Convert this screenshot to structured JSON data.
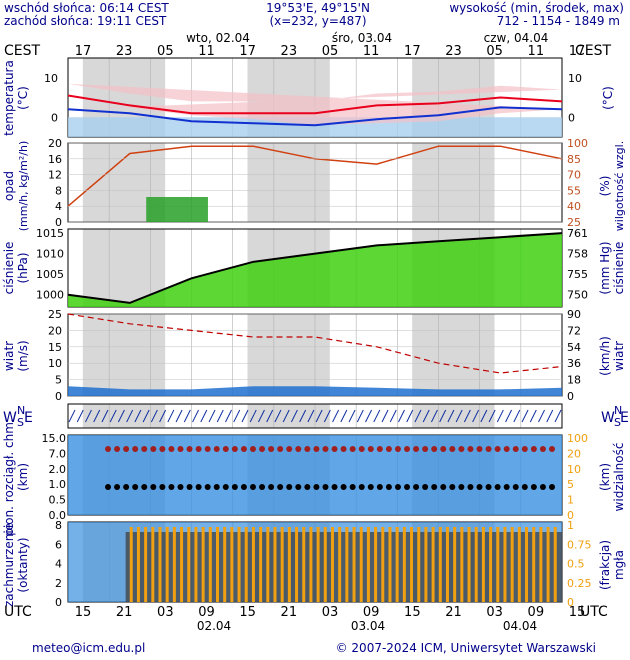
{
  "header": {
    "sunrise": "wschód słońca: 06:14 CEST",
    "sunset": "zachód słońca: 19:11 CEST",
    "coords": "19°53'E, 49°15'N",
    "grid": "(x=232, y=487)",
    "elev_title": "wysokość (min, środek, max)",
    "elev_values": "712 - 1154 - 1849 m"
  },
  "top_axis": {
    "tz_label": "CEST",
    "hours": [
      "17",
      "23",
      "05",
      "11",
      "17",
      "23",
      "05",
      "11",
      "17",
      "23",
      "05",
      "11",
      "17"
    ],
    "days": [
      "wto, 02.04",
      "śro, 03.04",
      "czw, 04.04"
    ]
  },
  "bottom_axis": {
    "tz_label": "UTC",
    "hours": [
      "15",
      "21",
      "03",
      "09",
      "15",
      "21",
      "03",
      "09",
      "15",
      "21",
      "03",
      "09",
      "15"
    ],
    "dates": [
      "02.04",
      "03.04",
      "04.04"
    ]
  },
  "footer": {
    "email": "meteo@icm.edu.pl",
    "copyright": "© 2007-2024 ICM, Uniwersytet Warszawski"
  },
  "panels": {
    "temperature": {
      "left_label": "temperatura",
      "left_unit": "(°C)",
      "right_label": "(°C)",
      "ticks": [
        "10",
        "0"
      ]
    },
    "precip": {
      "left_label": "opad",
      "left_unit": "(mm/h, kg/m²/h)",
      "right_label": "wilgotność wzgl.",
      "right_unit": "(%)",
      "left_ticks": [
        "20",
        "16",
        "12",
        "8",
        "4",
        "0"
      ],
      "right_ticks": [
        "100",
        "85",
        "70",
        "55",
        "40",
        "25"
      ]
    },
    "pressure": {
      "left_label": "ciśnienie",
      "left_unit": "(hPa)",
      "right_label": "ciśnienie",
      "right_unit": "(mm Hg)",
      "left_ticks": [
        "1015",
        "1010",
        "1005",
        "1000"
      ],
      "right_ticks": [
        "761",
        "758",
        "755",
        "750"
      ]
    },
    "wind": {
      "left_label": "wiatr",
      "left_unit": "(m/s)",
      "right_label": "wiatr",
      "right_unit": "(km/h)",
      "left_ticks": [
        "25",
        "20",
        "15",
        "10",
        "5",
        "0"
      ],
      "right_ticks": [
        "90",
        "72",
        "54",
        "36",
        "18",
        "0"
      ]
    },
    "direction": {
      "compass_n": "N",
      "compass_s": "S",
      "compass_w": "W",
      "compass_e": "E"
    },
    "clouds": {
      "left_label": "pion. rozciągł. chm.",
      "left_unit": "(km)",
      "right_label": "widzialność",
      "right_unit": "(km)",
      "left_ticks": [
        "15.0",
        "7.0",
        "2.0",
        "1.0",
        "0.5",
        "0.0"
      ],
      "right_ticks": [
        "100",
        "20",
        "10",
        "5",
        "1",
        "0"
      ]
    },
    "cover": {
      "left_label": "zachmurzenie",
      "left_unit": "(oktanty)",
      "right_label": "mgła",
      "right_unit": "(frakcja)",
      "left_ticks": [
        "8",
        "6",
        "4",
        "2",
        "0"
      ],
      "right_ticks": [
        "1",
        "0.75",
        "0.5",
        "0.25",
        "0"
      ]
    }
  },
  "colors": {
    "temp_line": "#e8001c",
    "dew_line": "#1030d0",
    "temp_band": "#f4c0c8",
    "precip_bar": "#28a028",
    "humidity_line": "#d04010",
    "pressure_fill": "#40d010",
    "wind_line": "#c00000",
    "fog_bar": "#f0a010",
    "axis_text": "#00008b",
    "night_shade": "#d8d8d8"
  },
  "chart_data": [
    {
      "type": "line",
      "title": "temperatura",
      "unit": "°C",
      "x": [
        "02.04 17",
        "02.04 23",
        "03.04 05",
        "03.04 11",
        "03.04 17",
        "03.04 23",
        "04.04 05",
        "04.04 11",
        "04.04 17"
      ],
      "series": [
        {
          "values": [
            5.5,
            3.0,
            1.0,
            1.0,
            1.0,
            3.0,
            3.5,
            5.0,
            4.0
          ]
        },
        {
          "values": [
            2.0,
            1.0,
            -1.0,
            -1.5,
            -2.0,
            -0.5,
            0.5,
            2.5,
            2.0
          ]
        }
      ],
      "ylim": [
        -5,
        15
      ]
    },
    {
      "type": "line",
      "title": "wilgotność wzgl.",
      "unit": "%",
      "x": [
        "02.04 17",
        "02.04 23",
        "03.04 05",
        "03.04 11",
        "03.04 17",
        "03.04 23",
        "04.04 05",
        "04.04 11",
        "04.04 17"
      ],
      "series": [
        {
          "values": [
            40,
            90,
            97,
            97,
            85,
            80,
            97,
            97,
            85
          ]
        }
      ],
      "ylim": [
        25,
        100
      ]
    },
    {
      "type": "area",
      "title": "ciśnienie",
      "unit": "hPa",
      "x": [
        "02.04 17",
        "02.04 23",
        "03.04 05",
        "03.04 11",
        "03.04 17",
        "03.04 23",
        "04.04 05",
        "04.04 11",
        "04.04 17"
      ],
      "series": [
        {
          "values": [
            1000,
            998,
            1004,
            1008,
            1010,
            1012,
            1013,
            1014,
            1015
          ]
        }
      ],
      "ylim": [
        997,
        1016
      ]
    },
    {
      "type": "line",
      "title": "wiatr",
      "unit": "m/s",
      "x": [
        "02.04 17",
        "02.04 23",
        "03.04 05",
        "03.04 11",
        "03.04 17",
        "03.04 23",
        "04.04 05",
        "04.04 11",
        "04.04 17"
      ],
      "series": [
        {
          "values": [
            25,
            22,
            20,
            18,
            18,
            15,
            10,
            7,
            9
          ]
        },
        {
          "values": [
            3,
            2,
            2,
            3,
            3,
            2.5,
            2,
            2,
            2.5
          ]
        }
      ],
      "ylim": [
        0,
        25
      ]
    }
  ]
}
